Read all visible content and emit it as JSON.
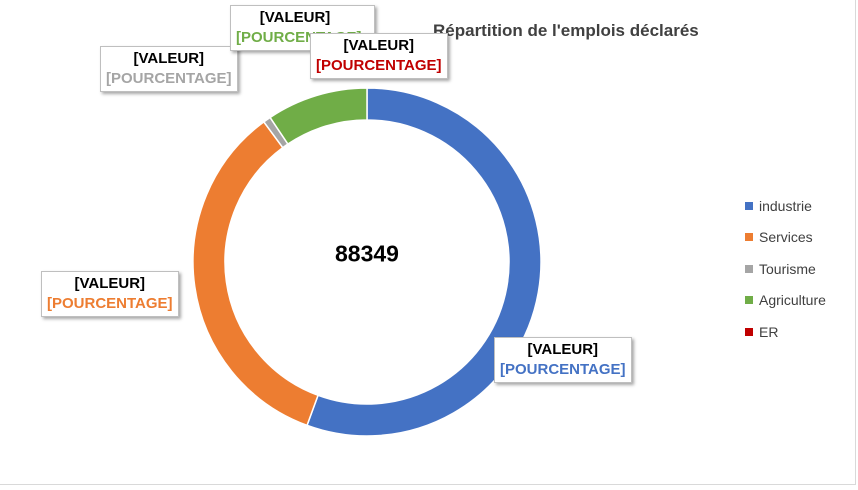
{
  "chart_data": {
    "type": "pie",
    "variant": "doughnut",
    "title": "Répartition de l'emplois déclarés",
    "center_total": "88349",
    "legend_position": "right",
    "series": [
      {
        "name": "industrie",
        "value": 55.6,
        "color": "#4472C4",
        "label_value": "[VALEUR]",
        "label_percent": "[POURCENTAGE]"
      },
      {
        "name": "Services",
        "value": 34.3,
        "color": "#ED7D31",
        "label_value": "[VALEUR]",
        "label_percent": "[POURCENTAGE]"
      },
      {
        "name": "Tourisme",
        "value": 0.7,
        "color": "#A5A5A5",
        "label_value": "[VALEUR]",
        "label_percent": "[POURCENTAGE]"
      },
      {
        "name": "Agriculture",
        "value": 9.4,
        "color": "#70AD47",
        "label_value": "[VALEUR]",
        "label_percent": "[POURCENTAGE]"
      },
      {
        "name": "ER",
        "value": 0.0,
        "color": "#C00000",
        "label_value": "[VALEUR]",
        "label_percent": "[POURCENTAGE]"
      }
    ]
  }
}
